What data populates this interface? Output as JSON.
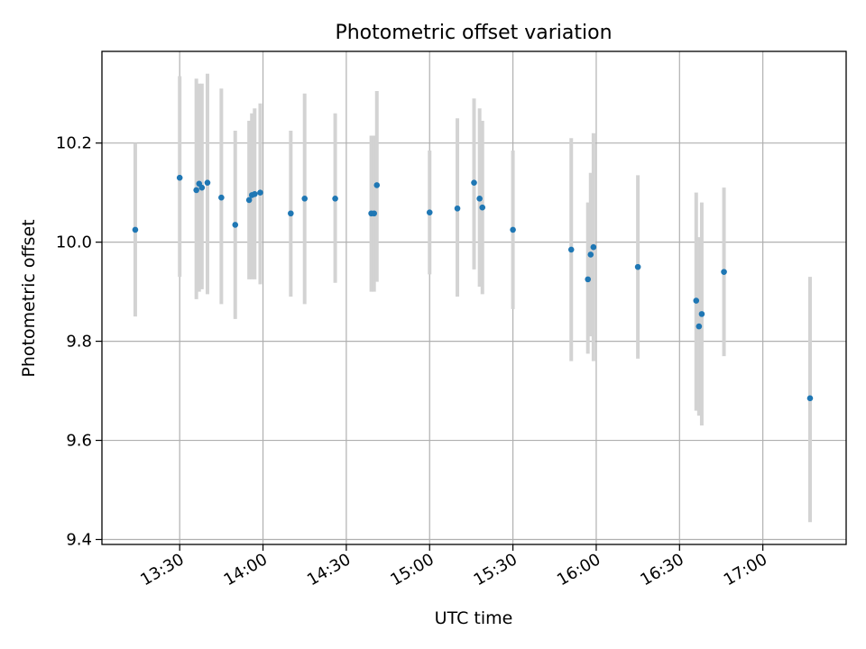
{
  "chart_data": {
    "type": "scatter",
    "title": "Photometric offset variation",
    "xlabel": "UTC time",
    "ylabel": "Photometric offset",
    "x_ticks": [
      "13:30",
      "14:00",
      "14:30",
      "15:00",
      "15:30",
      "16:00",
      "16:30",
      "17:00"
    ],
    "y_ticks": [
      "9.4",
      "9.6",
      "9.8",
      "10.0",
      "10.2"
    ],
    "xlim": [
      "13:02",
      "17:30"
    ],
    "ylim": [
      9.39,
      10.385
    ],
    "grid": true,
    "marker_color": "#1f77b4",
    "errorbar_color": "#d3d3d3",
    "points": [
      {
        "time": "13:14",
        "value": 10.025,
        "low": 9.85,
        "high": 10.2
      },
      {
        "time": "13:30",
        "value": 10.13,
        "low": 9.93,
        "high": 10.335
      },
      {
        "time": "13:36",
        "value": 10.105,
        "low": 9.885,
        "high": 10.33
      },
      {
        "time": "13:37",
        "value": 10.118,
        "low": 9.9,
        "high": 10.32
      },
      {
        "time": "13:38",
        "value": 10.11,
        "low": 9.905,
        "high": 10.32
      },
      {
        "time": "13:40",
        "value": 10.12,
        "low": 9.895,
        "high": 10.34
      },
      {
        "time": "13:45",
        "value": 10.09,
        "low": 9.875,
        "high": 10.31
      },
      {
        "time": "13:50",
        "value": 10.035,
        "low": 9.845,
        "high": 10.225
      },
      {
        "time": "13:55",
        "value": 10.085,
        "low": 9.925,
        "high": 10.245
      },
      {
        "time": "13:56",
        "value": 10.095,
        "low": 9.925,
        "high": 10.26
      },
      {
        "time": "13:57",
        "value": 10.097,
        "low": 9.925,
        "high": 10.27
      },
      {
        "time": "13:59",
        "value": 10.1,
        "low": 9.915,
        "high": 10.28
      },
      {
        "time": "14:10",
        "value": 10.058,
        "low": 9.89,
        "high": 10.225
      },
      {
        "time": "14:15",
        "value": 10.088,
        "low": 9.875,
        "high": 10.3
      },
      {
        "time": "14:26",
        "value": 10.088,
        "low": 9.918,
        "high": 10.26
      },
      {
        "time": "14:39",
        "value": 10.058,
        "low": 9.9,
        "high": 10.215
      },
      {
        "time": "14:40",
        "value": 10.058,
        "low": 9.9,
        "high": 10.215
      },
      {
        "time": "14:41",
        "value": 10.115,
        "low": 9.92,
        "high": 10.305
      },
      {
        "time": "15:00",
        "value": 10.06,
        "low": 9.935,
        "high": 10.185
      },
      {
        "time": "15:10",
        "value": 10.068,
        "low": 9.89,
        "high": 10.25
      },
      {
        "time": "15:16",
        "value": 10.12,
        "low": 9.945,
        "high": 10.29
      },
      {
        "time": "15:18",
        "value": 10.088,
        "low": 9.91,
        "high": 10.27
      },
      {
        "time": "15:19",
        "value": 10.07,
        "low": 9.895,
        "high": 10.245
      },
      {
        "time": "15:30",
        "value": 10.025,
        "low": 9.865,
        "high": 10.185
      },
      {
        "time": "15:51",
        "value": 9.985,
        "low": 9.76,
        "high": 10.21
      },
      {
        "time": "15:57",
        "value": 9.925,
        "low": 9.775,
        "high": 10.08
      },
      {
        "time": "15:58",
        "value": 9.975,
        "low": 9.81,
        "high": 10.14
      },
      {
        "time": "15:59",
        "value": 9.99,
        "low": 9.76,
        "high": 10.22
      },
      {
        "time": "16:15",
        "value": 9.95,
        "low": 9.765,
        "high": 10.135
      },
      {
        "time": "16:36",
        "value": 9.882,
        "low": 9.66,
        "high": 10.1
      },
      {
        "time": "16:37",
        "value": 9.83,
        "low": 9.65,
        "high": 10.01
      },
      {
        "time": "16:38",
        "value": 9.855,
        "low": 9.63,
        "high": 10.08
      },
      {
        "time": "16:46",
        "value": 9.94,
        "low": 9.77,
        "high": 10.11
      },
      {
        "time": "17:17",
        "value": 9.685,
        "low": 9.435,
        "high": 9.93
      }
    ]
  }
}
